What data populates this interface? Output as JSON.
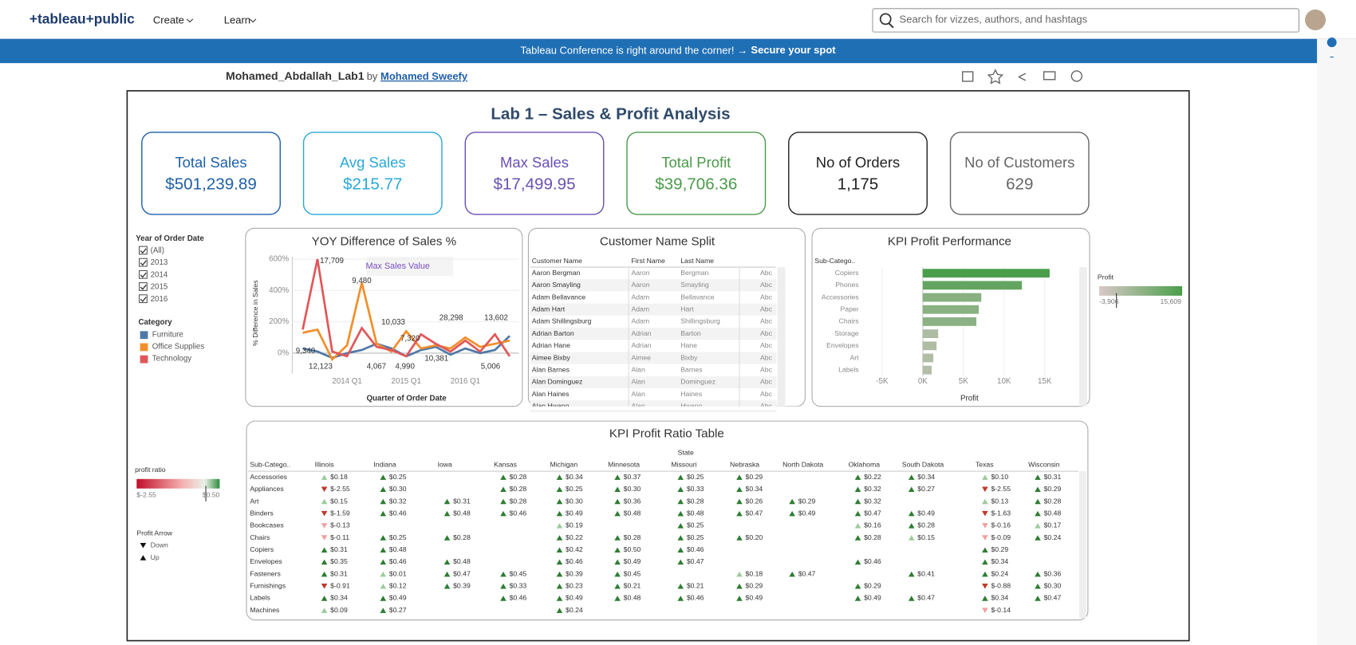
{
  "header": {
    "logo": "+tableau+public",
    "nav": [
      "Create",
      "Learn"
    ],
    "search_placeholder": "Search for vizzes, authors, and hashtags"
  },
  "banner": {
    "text": "Tableau Conference is right around the corner! →",
    "link": "Secure your spot"
  },
  "viz": {
    "title": "Mohamed_Abdallah_Lab1",
    "by": "by",
    "author": "Mohamed Sweefy"
  },
  "dashboard": {
    "title": "Lab 1 – Sales & Profit Analysis",
    "kpis": [
      {
        "label": "Total Sales",
        "value": "$501,239.89",
        "color": "#1f5fa8"
      },
      {
        "label": "Avg Sales",
        "value": "$215.77",
        "color": "#2aa8d8"
      },
      {
        "label": "Max Sales",
        "value": "$17,499.95",
        "color": "#6a4fb3"
      },
      {
        "label": "Total Profit",
        "value": "$39,706.36",
        "color": "#4a9a4a"
      },
      {
        "label": "No of Orders",
        "value": "1,175",
        "color": "#222222"
      },
      {
        "label": "No of Customers",
        "value": "629",
        "color": "#666666"
      }
    ],
    "year_filter": {
      "title": "Year of Order Date",
      "options": [
        "(All)",
        "2013",
        "2014",
        "2015",
        "2016"
      ]
    },
    "category_legend": {
      "title": "Category",
      "items": [
        {
          "name": "Furniture",
          "color": "#4e79a7"
        },
        {
          "name": "Office Supplies",
          "color": "#f28e2b"
        },
        {
          "name": "Technology",
          "color": "#e15759"
        }
      ]
    },
    "yoy_chart": {
      "type": "line",
      "title": "YOY Difference of Sales %",
      "y_label": "% Difference in Sales",
      "x_label": "Quarter of Order Date",
      "annotation": "Max Sales Value",
      "categories": [
        null,
        null,
        null,
        "2014 Q1",
        null,
        null,
        null,
        "2015 Q1",
        null,
        null,
        null,
        "2016 Q1",
        null,
        null,
        null
      ],
      "ylim": [
        -130,
        615
      ],
      "yticks": [
        {
          "value": 0,
          "label": "0%"
        },
        {
          "value": 200,
          "label": "200%"
        },
        {
          "value": 400,
          "label": "400%"
        },
        {
          "value": 600,
          "label": "600%"
        }
      ],
      "series": [
        {
          "name": "Furniture",
          "color": "#4e79a7",
          "values": [
            30,
            10,
            -30,
            0,
            20,
            60,
            30,
            -20,
            20,
            40,
            -10,
            30,
            0,
            20,
            110
          ]
        },
        {
          "name": "Office Supplies",
          "color": "#f28e2b",
          "values": [
            130,
            150,
            -40,
            50,
            450,
            60,
            10,
            140,
            30,
            50,
            30,
            100,
            40,
            60,
            80
          ]
        },
        {
          "name": "Technology",
          "color": "#e15759",
          "values": [
            150,
            600,
            10,
            -20,
            160,
            40,
            20,
            -20,
            120,
            60,
            10,
            80,
            10,
            120,
            -20
          ]
        }
      ],
      "point_labels": [
        "17,709",
        "9,480",
        "10,033",
        "7,320",
        "28,298",
        "13,602",
        "9,340",
        "12,123",
        "4,067",
        "4,990",
        "10,381",
        "5,006"
      ]
    },
    "customer_table": {
      "title": "Customer Name Split",
      "columns": [
        "Customer Name",
        "First Name",
        "Last Name"
      ],
      "rows": [
        [
          "Aaron Bergman",
          "Aaron",
          "Bergman",
          "Abc"
        ],
        [
          "Aaron Smayling",
          "Aaron",
          "Smayling",
          "Abc"
        ],
        [
          "Adam Bellavance",
          "Adam",
          "Bellavance",
          "Abc"
        ],
        [
          "Adam Hart",
          "Adam",
          "Hart",
          "Abc"
        ],
        [
          "Adam Shillingsburg",
          "Adam",
          "Shillingsburg",
          "Abc"
        ],
        [
          "Adrian Barton",
          "Adrian",
          "Barton",
          "Abc"
        ],
        [
          "Adrian Hane",
          "Adrian",
          "Hane",
          "Abc"
        ],
        [
          "Aimee Bixby",
          "Aimee",
          "Bixby",
          "Abc"
        ],
        [
          "Alan Barnes",
          "Alan",
          "Barnes",
          "Abc"
        ],
        [
          "Alan Dominguez",
          "Alan",
          "Dominguez",
          "Abc"
        ],
        [
          "Alan Haines",
          "Alan",
          "Haines",
          "Abc"
        ],
        [
          "Alan Hwang",
          "Alan",
          "Hwang",
          "Abc"
        ]
      ]
    },
    "profit_bar": {
      "type": "bar",
      "title": "KPI Profit Performance",
      "category_header": "Sub-Catego..",
      "x_label": "Profit",
      "categories": [
        "Copiers",
        "Phones",
        "Accessories",
        "Paper",
        "Chairs",
        "Storage",
        "Envelopes",
        "Art",
        "Labels"
      ],
      "values": [
        15609,
        12200,
        7200,
        6900,
        6600,
        1900,
        1700,
        1300,
        1100
      ],
      "xlim": [
        -7128,
        18936
      ],
      "xticks": [
        {
          "value": -5000,
          "label": "-5K"
        },
        {
          "value": 0,
          "label": "0K"
        },
        {
          "value": 5000,
          "label": "5K"
        },
        {
          "value": 10000,
          "label": "10K"
        },
        {
          "value": 15000,
          "label": "15K"
        }
      ],
      "legend": {
        "title": "Profit",
        "min": {
          "value": -3906,
          "label": "-3,906"
        },
        "max": {
          "value": 15609,
          "label": "15,609"
        },
        "low_color": "#d9c8c8",
        "high_color": "#4a9e4a"
      }
    },
    "ratio_table": {
      "title": "KPI Profit Ratio Table",
      "row_header": "Sub-Catego..",
      "column_group": "State",
      "columns": [
        "Illinois",
        "Indiana",
        "Iowa",
        "Kansas",
        "Michigan",
        "Minnesota",
        "Missouri",
        "Nebraska",
        "North Dakota",
        "Oklahoma",
        "South Dakota",
        "Texas",
        "Wisconsin"
      ],
      "rows": [
        {
          "name": "Accessories",
          "cells": [
            "$0.18",
            "$0.25",
            null,
            "$0.28",
            "$0.34",
            "$0.37",
            "$0.25",
            "$0.29",
            null,
            "$0.22",
            "$0.34",
            "$0.10",
            "$0.31"
          ]
        },
        {
          "name": "Appliances",
          "cells": [
            "$-2.55",
            "$0.30",
            null,
            "$0.28",
            "$0.25",
            "$0.30",
            "$0.33",
            "$0.34",
            null,
            "$0.32",
            "$0.27",
            "$-2.55",
            "$0.29"
          ]
        },
        {
          "name": "Art",
          "cells": [
            "$0.15",
            "$0.32",
            "$0.31",
            "$0.28",
            "$0.30",
            "$0.36",
            "$0.28",
            "$0.26",
            "$0.29",
            "$0.32",
            null,
            "$0.13",
            "$0.28"
          ]
        },
        {
          "name": "Binders",
          "cells": [
            "$-1.59",
            "$0.46",
            "$0.48",
            "$0.46",
            "$0.49",
            "$0.48",
            "$0.48",
            "$0.47",
            "$0.49",
            "$0.47",
            "$0.49",
            "$-1.63",
            "$0.48"
          ]
        },
        {
          "name": "Bookcases",
          "cells": [
            "$-0.13",
            null,
            null,
            null,
            "$0.19",
            null,
            "$0.25",
            null,
            null,
            "$0.16",
            "$0.28",
            "$-0.16",
            "$0.17"
          ]
        },
        {
          "name": "Chairs",
          "cells": [
            "$-0.11",
            "$0.25",
            "$0.28",
            null,
            "$0.22",
            "$0.28",
            "$0.25",
            "$0.20",
            null,
            "$0.28",
            "$0.15",
            "$-0.09",
            "$0.24"
          ]
        },
        {
          "name": "Copiers",
          "cells": [
            "$0.31",
            "$0.48",
            null,
            null,
            "$0.42",
            "$0.50",
            "$0.46",
            null,
            null,
            null,
            null,
            "$0.29",
            null
          ]
        },
        {
          "name": "Envelopes",
          "cells": [
            "$0.35",
            "$0.46",
            "$0.48",
            null,
            "$0.46",
            "$0.49",
            "$0.47",
            null,
            null,
            "$0.46",
            null,
            "$0.34",
            null
          ]
        },
        {
          "name": "Fasteners",
          "cells": [
            "$0.31",
            "$0.01",
            "$0.47",
            "$0.45",
            "$0.39",
            "$0.45",
            null,
            "$0.18",
            "$0.47",
            null,
            "$0.41",
            "$0.24",
            "$0.36"
          ]
        },
        {
          "name": "Furnishings",
          "cells": [
            "$-0.91",
            "$0.12",
            "$0.39",
            "$0.33",
            "$0.23",
            "$0.21",
            "$0.21",
            "$0.29",
            null,
            "$0.29",
            null,
            "$-0.88",
            "$0.30"
          ]
        },
        {
          "name": "Labels",
          "cells": [
            "$0.34",
            "$0.49",
            null,
            "$0.46",
            "$0.49",
            "$0.48",
            "$0.46",
            "$0.49",
            null,
            "$0.49",
            "$0.47",
            "$0.34",
            "$0.47"
          ]
        },
        {
          "name": "Machines",
          "cells": [
            "$0.09",
            "$0.27",
            null,
            null,
            "$0.24",
            null,
            null,
            null,
            null,
            null,
            null,
            "$-0.14",
            null
          ]
        }
      ]
    },
    "ratio_legend": {
      "title": "profit ratio",
      "min": "$-2.55",
      "max": "$0.50"
    },
    "arrow_legend": {
      "title": "Profit Arrow",
      "items": [
        "Down",
        "Up"
      ]
    }
  }
}
